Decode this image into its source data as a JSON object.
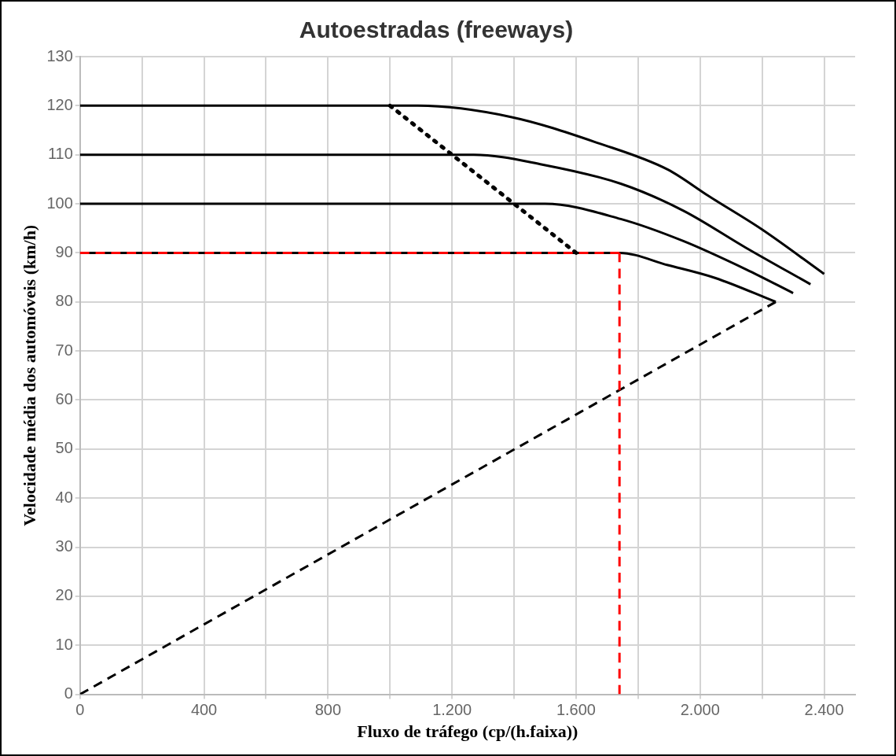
{
  "chart_data": {
    "type": "line",
    "title": "Autoestradas (freeways)",
    "xlabel": "Fluxo de tráfego (cp/(h.faixa))",
    "ylabel": "Velocidade média dos automóveis (km/h)",
    "series": [
      {
        "color": "#000000",
        "line_style": "solid",
        "x": [
          0,
          1090,
          1390,
          1675,
          1895,
          2027,
          2199,
          2400
        ],
        "values": [
          120,
          120,
          117.7,
          112.3,
          107,
          101.6,
          94.8,
          85.7
        ]
      },
      {
        "color": "#000000",
        "line_style": "solid",
        "x": [
          0,
          1270,
          1491,
          1744,
          1946,
          2149,
          2356
        ],
        "values": [
          110,
          110,
          108,
          104.1,
          98.6,
          91,
          83.6
        ]
      },
      {
        "color": "#000000",
        "line_style": "solid",
        "x": [
          0,
          1500,
          1744,
          1946,
          2149,
          2300
        ],
        "values": [
          100,
          100,
          96.9,
          92.4,
          86.6,
          81.8
        ]
      },
      {
        "color": "#000000",
        "line_style": "solid",
        "x": [
          0,
          1740,
          1896,
          2048,
          2244
        ],
        "values": [
          90,
          90,
          87.5,
          84.9,
          80
        ]
      },
      {
        "color": "#000000",
        "line_style": "dotted",
        "x": [
          1000,
          1600
        ],
        "values": [
          120,
          90
        ]
      },
      {
        "color": "#000000",
        "line_style": "dashed",
        "x": [
          0,
          2244
        ],
        "values": [
          0,
          80
        ]
      },
      {
        "color": "#ff0000",
        "line_style": "dashed",
        "x": [
          0,
          1740
        ],
        "values": [
          90,
          90
        ]
      },
      {
        "color": "#ff0000",
        "line_style": "dashed",
        "x": [
          1740,
          1740
        ],
        "values": [
          0,
          90
        ]
      }
    ],
    "xlim": [
      0,
      2500
    ],
    "ylim": [
      0,
      130
    ],
    "xticks": [
      0,
      {
        "value": 200,
        "label": null
      },
      400,
      {
        "value": 600,
        "label": null
      },
      800,
      {
        "value": 1000,
        "label": null
      },
      {
        "value": 1200,
        "label": "1.200"
      },
      {
        "value": 1400,
        "label": null
      },
      {
        "value": 1600,
        "label": "1.600"
      },
      {
        "value": 1800,
        "label": null
      },
      {
        "value": 2000,
        "label": "2.000"
      },
      {
        "value": 2200,
        "label": null
      },
      {
        "value": 2400,
        "label": "2.400"
      }
    ],
    "yticks": [
      0,
      10,
      20,
      30,
      40,
      50,
      60,
      70,
      80,
      90,
      100,
      110,
      120,
      130
    ],
    "grid": true,
    "legend": false,
    "marker": "none"
  }
}
